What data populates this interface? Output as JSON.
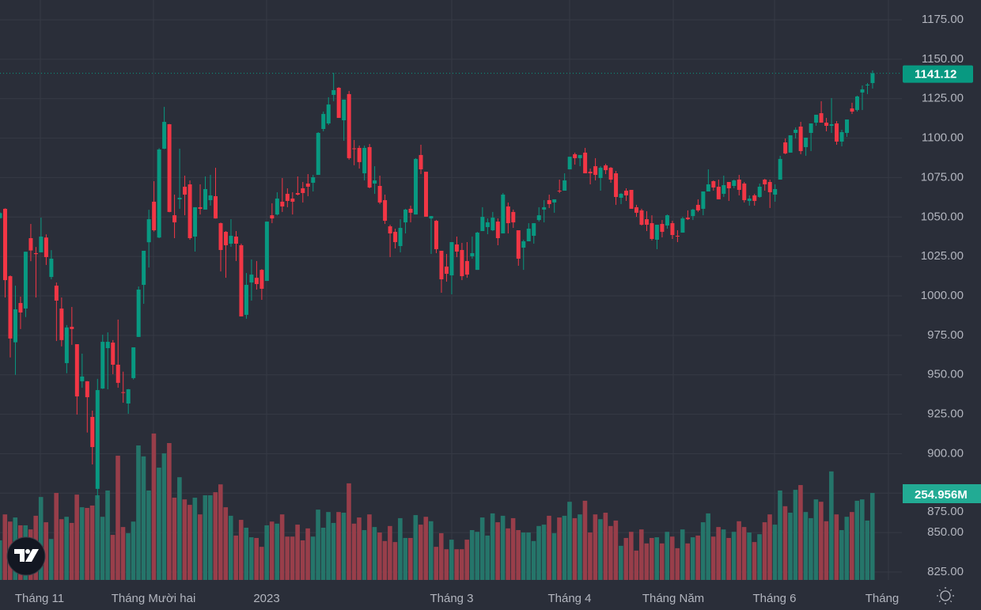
{
  "chart_data": {
    "type": "candlestick",
    "price_axis": {
      "ylim": [
        825,
        1175
      ],
      "ticks": [
        "1175.00",
        "1150.00",
        "1125.00",
        "1100.00",
        "1075.00",
        "1050.00",
        "1025.00",
        "1000.00",
        "975.00",
        "950.00",
        "925.00",
        "900.00",
        "875.00",
        "850.00",
        "825.00"
      ],
      "tick_values": [
        1175,
        1150,
        1125,
        1100,
        1075,
        1050,
        1025,
        1000,
        975,
        950,
        925,
        900,
        875,
        850,
        825
      ]
    },
    "x_axis": {
      "ticks": [
        "Tháng 11",
        "Tháng Mười hai",
        "2023",
        "Tháng 3",
        "Tháng 4",
        "Tháng Năm",
        "Tháng 6",
        "Tháng"
      ]
    },
    "grid": true,
    "last_price": {
      "value": 1141.12,
      "label": "1141.12"
    },
    "last_volume": {
      "value": 254.956,
      "label": "254.956M"
    },
    "colors": {
      "background": "#2a2e39",
      "grid": "#363a45",
      "up": "#089981",
      "down": "#f23645",
      "volume_up": "#25756a",
      "volume_down": "#983e4a",
      "price_label": "#089981",
      "volume_label": "#22ab94",
      "axis_text": "#b2b5be"
    },
    "ohlc_fields": [
      "open",
      "high",
      "low",
      "close"
    ],
    "candles": [
      [
        1049.3,
        1053,
        1049,
        1052.5
      ],
      [
        1055.2,
        1055.5,
        999,
        1010
      ],
      [
        1012.5,
        1013,
        961,
        973
      ],
      [
        970.6,
        1006.5,
        950,
        991.5
      ],
      [
        995.5,
        999.5,
        979,
        989.5
      ],
      [
        992,
        1028,
        986.6,
        1028
      ],
      [
        1036.6,
        1045.6,
        1022,
        1028.8
      ],
      [
        1027.1,
        1031,
        999,
        1026.5
      ],
      [
        1027.6,
        1049.6,
        1027.6,
        1037.6
      ],
      [
        1037,
        1039,
        1019.6,
        1024.6
      ],
      [
        1012,
        1029,
        1010.5,
        1023.6
      ],
      [
        1006.5,
        1008.5,
        971.4,
        997
      ],
      [
        992,
        999,
        968,
        972
      ],
      [
        957.4,
        981.5,
        951,
        980
      ],
      [
        980.4,
        993,
        969,
        979
      ],
      [
        969.4,
        969.4,
        924.8,
        936.3
      ],
      [
        945.9,
        963.4,
        941.8,
        948.9
      ],
      [
        945.9,
        946,
        913.4,
        935.8
      ],
      [
        923.3,
        927.3,
        893.2,
        904.2
      ],
      [
        877.7,
        947.4,
        871.6,
        940.3
      ],
      [
        941.3,
        975.4,
        941,
        970.9
      ],
      [
        966.9,
        976.9,
        940.8,
        970.9
      ],
      [
        970.4,
        972,
        950.4,
        956.4
      ],
      [
        956.4,
        985,
        941.8,
        944.9
      ],
      [
        939,
        952,
        932.3,
        938.5
      ],
      [
        931.8,
        941,
        925.3,
        940.8
      ],
      [
        947.9,
        967.4,
        947,
        967.4
      ],
      [
        974,
        1006,
        974,
        1004
      ],
      [
        1007,
        1028.6,
        995,
        1028.6
      ],
      [
        1034,
        1054.6,
        1018,
        1048.6
      ],
      [
        1059.7,
        1072.7,
        1040.8,
        1041.6
      ],
      [
        1037,
        1093.6,
        1036.6,
        1092.8
      ],
      [
        1093.3,
        1119.8,
        1093,
        1110.3
      ],
      [
        1108.8,
        1109,
        1053,
        1053.2
      ],
      [
        1051.1,
        1064.2,
        1036.6,
        1046.6
      ],
      [
        1061.2,
        1093.3,
        1055.2,
        1062.2
      ],
      [
        1069.2,
        1076.2,
        1051.1,
        1064.2
      ],
      [
        1070.7,
        1073.2,
        1035.6,
        1036.6
      ],
      [
        1037.6,
        1056.2,
        1028.1,
        1056.2
      ],
      [
        1056.2,
        1070.7,
        1051.6,
        1055.2
      ],
      [
        1054.7,
        1075.7,
        1054.7,
        1067.7
      ],
      [
        1060.7,
        1076.7,
        1057.2,
        1063.7
      ],
      [
        1063.2,
        1081.2,
        1049,
        1049.1
      ],
      [
        1046.1,
        1046.5,
        1015.5,
        1029.1
      ],
      [
        1040.6,
        1041.1,
        1011.5,
        1032.1
      ],
      [
        1033.1,
        1048.6,
        1031.1,
        1038.1
      ],
      [
        1037.6,
        1041.1,
        1022.1,
        1033.1
      ],
      [
        1032.1,
        1033.1,
        987,
        987
      ],
      [
        988,
        1014.5,
        985.5,
        1007
      ],
      [
        1008.5,
        1023.1,
        997,
        1013.5
      ],
      [
        1011.5,
        1022.1,
        1004,
        1007.5
      ],
      [
        1016.5,
        1017,
        997.5,
        1004.5
      ],
      [
        1009.5,
        1047.1,
        1009.5,
        1047.1
      ],
      [
        1051.1,
        1058.7,
        1046.1,
        1049.1
      ],
      [
        1051.6,
        1065.7,
        1051,
        1061.7
      ],
      [
        1059.7,
        1074.7,
        1053.2,
        1056.7
      ],
      [
        1064.7,
        1068.2,
        1056.2,
        1060.2
      ],
      [
        1061.7,
        1065.7,
        1051.6,
        1059.7
      ],
      [
        1065.2,
        1075.7,
        1063.7,
        1064.2
      ],
      [
        1068.2,
        1072.2,
        1059.2,
        1065.2
      ],
      [
        1071.2,
        1077.2,
        1063.2,
        1069.2
      ],
      [
        1071.7,
        1076.7,
        1066.2,
        1075.2
      ],
      [
        1076.7,
        1103.8,
        1076.7,
        1103.3
      ],
      [
        1105.8,
        1116.8,
        1104.3,
        1115.3
      ],
      [
        1109.3,
        1125.9,
        1108.3,
        1121.3
      ],
      [
        1127.4,
        1141.4,
        1123.4,
        1130.4
      ],
      [
        1131.9,
        1132.3,
        1112.8,
        1112.8
      ],
      [
        1111.3,
        1124.4,
        1098.3,
        1124.4
      ],
      [
        1127.9,
        1129.9,
        1086.3,
        1087.3
      ],
      [
        1093.5,
        1098.8,
        1082.8,
        1093
      ],
      [
        1093.8,
        1095.3,
        1080.7,
        1084.8
      ],
      [
        1077.7,
        1095.3,
        1073.2,
        1093.8
      ],
      [
        1094.3,
        1096.3,
        1068.2,
        1068.7
      ],
      [
        1071.2,
        1082.2,
        1064.7,
        1073.2
      ],
      [
        1069.7,
        1076.2,
        1058.2,
        1059.2
      ],
      [
        1060.7,
        1064.2,
        1045.6,
        1047.6
      ],
      [
        1044.1,
        1045.1,
        1024.6,
        1039.6
      ],
      [
        1040.6,
        1042.6,
        1030.1,
        1034.1
      ],
      [
        1031.6,
        1048.6,
        1027.6,
        1043.1
      ],
      [
        1046.6,
        1055.2,
        1039.6,
        1054.7
      ],
      [
        1055.2,
        1057.2,
        1046.6,
        1052.7
      ],
      [
        1051.6,
        1087.3,
        1051.6,
        1086.8
      ],
      [
        1089.3,
        1095.8,
        1077.2,
        1080.2
      ],
      [
        1078.7,
        1078.7,
        1050.2,
        1050.2
      ],
      [
        1049.1,
        1050.6,
        1026.6,
        1050.6
      ],
      [
        1047.6,
        1048.1,
        1027.1,
        1029.6
      ],
      [
        1028.6,
        1028.6,
        1002,
        1010.5
      ],
      [
        1018.6,
        1026.6,
        1009,
        1014
      ],
      [
        1013,
        1034.1,
        1001,
        1034.1
      ],
      [
        1032.6,
        1037.6,
        1024.6,
        1028.1
      ],
      [
        1029.1,
        1033.6,
        1010,
        1012.5
      ],
      [
        1022.1,
        1034.1,
        1011.5,
        1013.5
      ],
      [
        1025.1,
        1037.6,
        1023.6,
        1027.1
      ],
      [
        1016.5,
        1040.6,
        1016.5,
        1040.1
      ],
      [
        1041.1,
        1056.2,
        1041.1,
        1050.1
      ],
      [
        1043.6,
        1049.1,
        1039.1,
        1046.6
      ],
      [
        1041.6,
        1053.2,
        1041.1,
        1049.6
      ],
      [
        1047.1,
        1049.1,
        1032.1,
        1036.6
      ],
      [
        1039.6,
        1065.2,
        1039.6,
        1064.2
      ],
      [
        1056.7,
        1059.2,
        1039.6,
        1046.1
      ],
      [
        1053.2,
        1054.7,
        1043.1,
        1046.6
      ],
      [
        1041.6,
        1041.6,
        1019.1,
        1023.6
      ],
      [
        1030.6,
        1035.6,
        1016.5,
        1034.6
      ],
      [
        1034.6,
        1046.1,
        1034.6,
        1042.6
      ],
      [
        1038.1,
        1046.1,
        1033.1,
        1046.1
      ],
      [
        1048.1,
        1056.2,
        1047.1,
        1051.1
      ],
      [
        1054.7,
        1060.7,
        1046.6,
        1056.2
      ],
      [
        1060.7,
        1064.2,
        1055.7,
        1058.2
      ],
      [
        1059.2,
        1061.2,
        1052.7,
        1061.2
      ],
      [
        1066.7,
        1073.7,
        1065.2,
        1066.2
      ],
      [
        1066.7,
        1077.7,
        1066.7,
        1073.2
      ],
      [
        1080.2,
        1088.2,
        1080.2,
        1088.2
      ],
      [
        1089.8,
        1090.8,
        1083.2,
        1087.3
      ],
      [
        1087.3,
        1089.3,
        1082.2,
        1089.3
      ],
      [
        1090.8,
        1093.8,
        1077.7,
        1077.7
      ],
      [
        1078.7,
        1080.7,
        1070.7,
        1077.7
      ],
      [
        1082.2,
        1087.3,
        1073.2,
        1076.7
      ],
      [
        1074.7,
        1082.2,
        1066.7,
        1081.2
      ],
      [
        1082.7,
        1083.7,
        1077.2,
        1079.7
      ],
      [
        1081.2,
        1081.7,
        1071.7,
        1073.7
      ],
      [
        1077.7,
        1079.2,
        1057.7,
        1062.7
      ],
      [
        1062.2,
        1065.2,
        1058.2,
        1064.7
      ],
      [
        1066.7,
        1068.2,
        1060.2,
        1063.7
      ],
      [
        1067.2,
        1067.2,
        1055.2,
        1055.2
      ],
      [
        1056.2,
        1057.7,
        1050.1,
        1052.7
      ],
      [
        1054.2,
        1055.2,
        1044.6,
        1045.1
      ],
      [
        1048.6,
        1053.7,
        1041.1,
        1045.1
      ],
      [
        1046.1,
        1051.1,
        1035.1,
        1036.1
      ],
      [
        1035.6,
        1045.1,
        1029.6,
        1045.1
      ],
      [
        1045.6,
        1048.1,
        1037.1,
        1040.6
      ],
      [
        1044.6,
        1051.6,
        1042.6,
        1051.1
      ],
      [
        1046.1,
        1047.6,
        1036.1,
        1038.6
      ],
      [
        1038.1,
        1041.6,
        1034.1,
        1037.6
      ],
      [
        1040.1,
        1050.1,
        1040.1,
        1049.1
      ],
      [
        1049.6,
        1054.2,
        1048.1,
        1048.6
      ],
      [
        1050.6,
        1055.2,
        1048.1,
        1054.7
      ],
      [
        1057.7,
        1061.2,
        1053.2,
        1054.2
      ],
      [
        1055.2,
        1066.2,
        1051.1,
        1066.2
      ],
      [
        1066.2,
        1080.2,
        1066.2,
        1070.7
      ],
      [
        1072.7,
        1073.2,
        1066.7,
        1068.7
      ],
      [
        1069.2,
        1073.7,
        1061.2,
        1061.2
      ],
      [
        1064.7,
        1076.2,
        1062.7,
        1070.2
      ],
      [
        1072.2,
        1072.2,
        1060.2,
        1068.2
      ],
      [
        1069.7,
        1073.7,
        1068.2,
        1073.2
      ],
      [
        1073.7,
        1076.7,
        1063.7,
        1067.2
      ],
      [
        1071.2,
        1072.2,
        1059.2,
        1060.7
      ],
      [
        1060.2,
        1063.7,
        1057.2,
        1061.7
      ],
      [
        1063.7,
        1064.7,
        1057.2,
        1060.2
      ],
      [
        1062.7,
        1071.2,
        1062.2,
        1069.2
      ],
      [
        1073.7,
        1074.2,
        1066.7,
        1070.7
      ],
      [
        1072.2,
        1073.7,
        1055.7,
        1065.7
      ],
      [
        1064.2,
        1070.7,
        1059.7,
        1067.7
      ],
      [
        1073.7,
        1088.8,
        1073.7,
        1086.8
      ],
      [
        1097.3,
        1099.8,
        1089.8,
        1090.3
      ],
      [
        1090.8,
        1101.8,
        1090.8,
        1101.8
      ],
      [
        1103.3,
        1106.8,
        1099.8,
        1105.3
      ],
      [
        1107.3,
        1110.3,
        1089.8,
        1091.8
      ],
      [
        1094.3,
        1100.3,
        1088.8,
        1100.3
      ],
      [
        1103.3,
        1109.3,
        1091.8,
        1109.3
      ],
      [
        1109.8,
        1114.8,
        1107.8,
        1114.8
      ],
      [
        1115.8,
        1123.4,
        1109.8,
        1109.8
      ],
      [
        1109.8,
        1112.8,
        1104.3,
        1107.8
      ],
      [
        1107.8,
        1125.4,
        1103.3,
        1108.8
      ],
      [
        1109.3,
        1110.8,
        1095.8,
        1097.8
      ],
      [
        1097.8,
        1105.3,
        1094.8,
        1103.8
      ],
      [
        1103.3,
        1111.8,
        1100.8,
        1111.8
      ],
      [
        1118.8,
        1122.4,
        1115.3,
        1116.8
      ],
      [
        1117.8,
        1126.9,
        1116.8,
        1126.4
      ],
      [
        1128.9,
        1133.4,
        1117.8,
        1130.9
      ],
      [
        1133.4,
        1134.9,
        1127.9,
        1133.9
      ],
      [
        1134.9,
        1142.9,
        1131.4,
        1141.12
      ]
    ],
    "volume_unit": "M",
    "volumes": [
      116,
      192,
      171,
      183,
      160,
      160,
      148,
      188,
      243,
      169,
      120,
      255,
      178,
      185,
      167,
      250,
      213,
      211,
      218,
      248,
      185,
      262,
      132,
      364,
      155,
      137,
      171,
      394,
      362,
      262,
      429,
      329,
      371,
      401,
      241,
      301,
      236,
      220,
      241,
      192,
      248,
      248,
      257,
      280,
      213,
      188,
      130,
      176,
      153,
      125,
      123,
      97,
      160,
      171,
      165,
      192,
      127,
      127,
      162,
      116,
      151,
      127,
      206,
      153,
      199,
      167,
      199,
      197,
      283,
      165,
      183,
      146,
      192,
      155,
      139,
      114,
      158,
      111,
      181,
      123,
      123,
      190,
      162,
      185,
      172,
      97,
      137,
      90,
      118,
      90,
      90,
      118,
      146,
      141,
      183,
      130,
      195,
      169,
      188,
      151,
      181,
      146,
      139,
      139,
      114,
      158,
      162,
      188,
      137,
      183,
      188,
      229,
      181,
      192,
      232,
      139,
      192,
      178,
      197,
      158,
      174,
      100,
      123,
      141,
      86,
      148,
      107,
      123,
      125,
      107,
      141,
      127,
      93,
      148,
      107,
      125,
      130,
      169,
      195,
      127,
      155,
      148,
      123,
      141,
      172,
      155,
      139,
      111,
      134,
      169,
      192,
      162,
      262,
      216,
      197,
      264,
      278,
      199,
      181,
      236,
      229,
      172,
      318,
      192,
      146,
      185,
      199,
      232,
      236,
      174,
      254.956
    ]
  },
  "ui": {
    "logo_icon": "tradingview-logo",
    "settings_icon": "sun-settings-icon"
  }
}
